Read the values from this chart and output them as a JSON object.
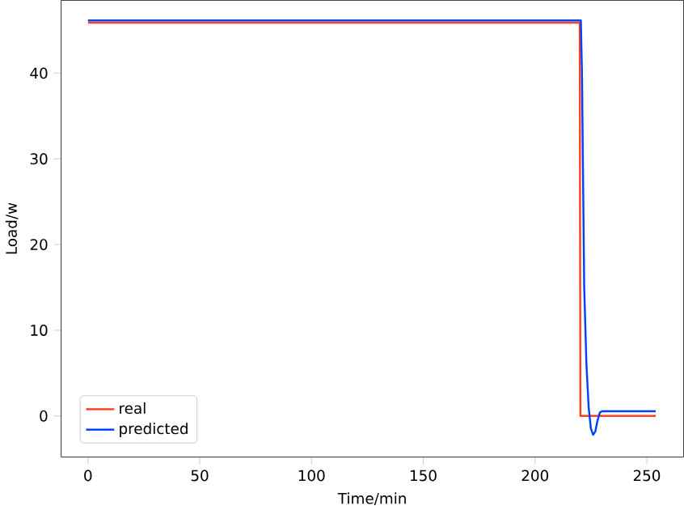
{
  "chart_data": {
    "type": "line",
    "xlabel": "Time/min",
    "ylabel": "Load/w",
    "xlim": [
      -12,
      266.5
    ],
    "ylim": [
      -4.8,
      48.5
    ],
    "xticks": [
      0,
      50,
      100,
      150,
      200,
      250
    ],
    "yticks": [
      0,
      10,
      20,
      30,
      40
    ],
    "legend": "bottom left",
    "grid": false,
    "series": [
      {
        "name": "real",
        "color": "#ff4020",
        "x": [
          0,
          220,
          220.3,
          254
        ],
        "values": [
          45.9,
          45.9,
          0,
          0
        ]
      },
      {
        "name": "predicted",
        "color": "#0040ff",
        "x": [
          0,
          220.5,
          221,
          222,
          223,
          224,
          225,
          226,
          227,
          228,
          229,
          230,
          254
        ],
        "values": [
          46.15,
          46.15,
          40,
          15,
          6,
          1,
          -1.5,
          -2.2,
          -1.8,
          -0.5,
          0.4,
          0.55,
          0.55
        ]
      }
    ]
  }
}
